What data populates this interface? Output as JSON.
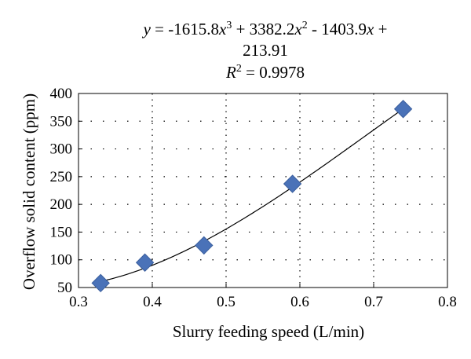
{
  "chart_data": {
    "type": "scatter",
    "xlabel": "Slurry feeding speed (L/min)",
    "ylabel": "Overflow solid content (ppm)",
    "xlim": [
      0.3,
      0.8
    ],
    "ylim": [
      50,
      400
    ],
    "x_ticks": [
      "0.3",
      "0.4",
      "0.5",
      "0.6",
      "0.7",
      "0.8"
    ],
    "y_ticks": [
      "50",
      "100",
      "150",
      "200",
      "250",
      "300",
      "350",
      "400"
    ],
    "grid": true,
    "series": [
      {
        "marker": "diamond",
        "color": "#4a72b8",
        "points": [
          {
            "x": 0.33,
            "y": 58
          },
          {
            "x": 0.39,
            "y": 95
          },
          {
            "x": 0.47,
            "y": 126
          },
          {
            "x": 0.59,
            "y": 237
          },
          {
            "x": 0.74,
            "y": 372
          }
        ]
      }
    ],
    "trendline": {
      "type": "polynomial",
      "coefficients": [
        -1615.8,
        3382.2,
        -1403.9,
        213.91
      ],
      "x_range": [
        0.33,
        0.74
      ],
      "r_squared": 0.9978
    },
    "annotation": {
      "line1_a": "y",
      "line1_b": " = -1615.8",
      "line1_c": "x",
      "line1_d": "3",
      "line1_e": " + 3382.2",
      "line1_f": "x",
      "line1_g": "2",
      "line1_h": " - 1403.9",
      "line1_i": "x",
      "line1_j": " +",
      "line2": "213.91",
      "line3_a": "R",
      "line3_b": "2",
      "line3_c": " = 0.9978"
    }
  }
}
